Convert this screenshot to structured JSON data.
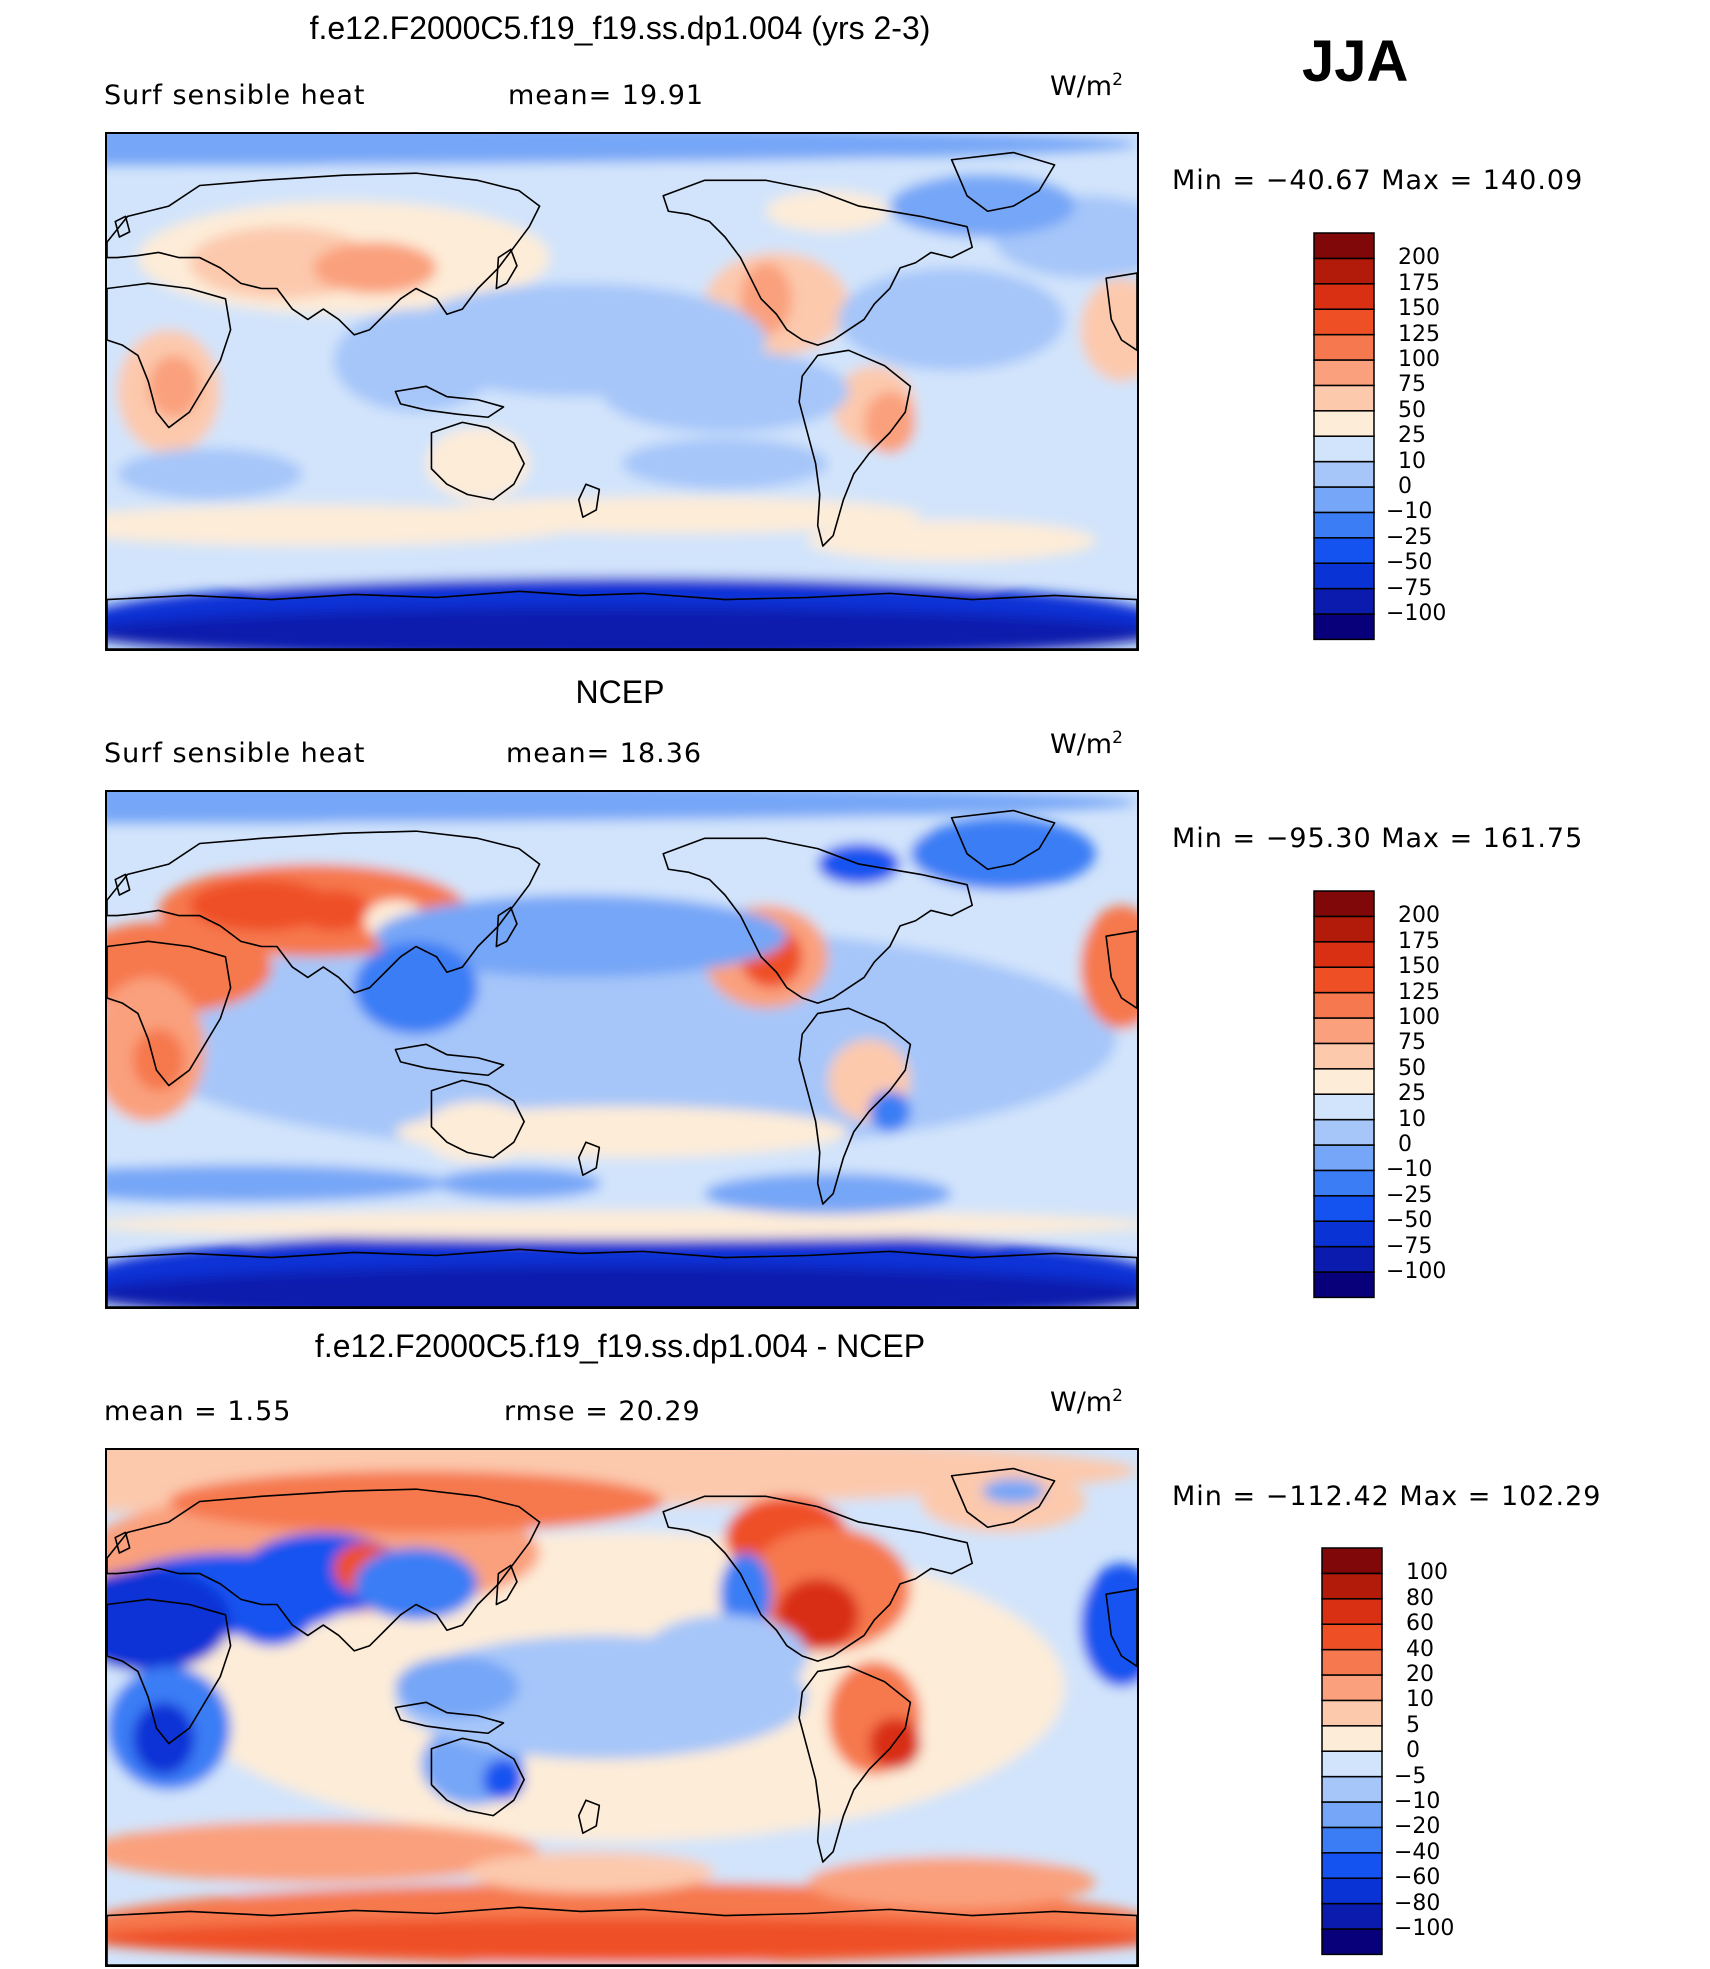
{
  "season": "JJA",
  "panels": [
    {
      "id": "model",
      "title": "f.e12.F2000C5.f19_f19.ss.dp1.004 (yrs 2-3)",
      "left_label": "Surf  sensible  heat",
      "stat_label": "mean=   19.91",
      "units": "W/m",
      "units_sup": "2",
      "minmax": "Min  =  −40.67  Max  =  140.09",
      "colorbar": {
        "colors": [
          "#08007a",
          "#0a1bad",
          "#0a33d6",
          "#1553f0",
          "#3b7df5",
          "#76a6f7",
          "#a6c6f9",
          "#d2e4fb",
          "#fdecd8",
          "#fcc9ad",
          "#faa07d",
          "#f6784e",
          "#ef4f25",
          "#d92f12",
          "#b21a0a",
          "#800808"
        ],
        "labels": [
          "−100",
          "−75",
          "−50",
          "−25",
          "−10",
          "0",
          "10",
          "25",
          "50",
          "75",
          "100",
          "125",
          "150",
          "175",
          "200"
        ]
      }
    },
    {
      "id": "ncep",
      "title": "NCEP",
      "left_label": "Surf  sensible  heat",
      "stat_label": "mean=   18.36",
      "units": "W/m",
      "units_sup": "2",
      "minmax": "Min  =  −95.30  Max  =  161.75",
      "colorbar": {
        "colors": [
          "#08007a",
          "#0a1bad",
          "#0a33d6",
          "#1553f0",
          "#3b7df5",
          "#76a6f7",
          "#a6c6f9",
          "#d2e4fb",
          "#fdecd8",
          "#fcc9ad",
          "#faa07d",
          "#f6784e",
          "#ef4f25",
          "#d92f12",
          "#b21a0a",
          "#800808"
        ],
        "labels": [
          "−100",
          "−75",
          "−50",
          "−25",
          "−10",
          "0",
          "10",
          "25",
          "50",
          "75",
          "100",
          "125",
          "150",
          "175",
          "200"
        ]
      }
    },
    {
      "id": "diff",
      "title": "f.e12.F2000C5.f19_f19.ss.dp1.004 - NCEP",
      "left_label": "mean  =     1.55",
      "stat_label": "rmse  =   20.29",
      "units": "W/m",
      "units_sup": "2",
      "minmax": "Min  =  −112.42  Max  =  102.29",
      "colorbar": {
        "colors": [
          "#08007a",
          "#0a1bad",
          "#0a33d6",
          "#1553f0",
          "#3b7df5",
          "#76a6f7",
          "#a6c6f9",
          "#d2e4fb",
          "#fdecd8",
          "#fcc9ad",
          "#faa07d",
          "#f6784e",
          "#ef4f25",
          "#d92f12",
          "#b21a0a",
          "#800808"
        ],
        "labels": [
          "−100",
          "−80",
          "−60",
          "−40",
          "−20",
          "−10",
          "−5",
          "0",
          "5",
          "10",
          "20",
          "40",
          "60",
          "80",
          "100"
        ]
      }
    }
  ]
}
